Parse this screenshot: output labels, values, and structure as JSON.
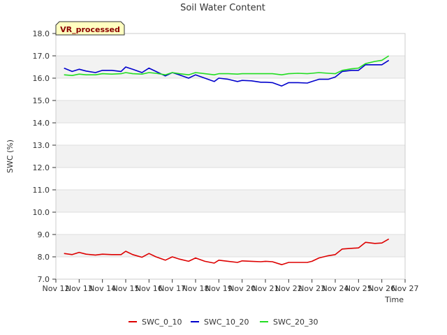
{
  "chart_data": {
    "type": "line",
    "title": "Soil Water Content",
    "xlabel": "Time",
    "ylabel": "SWC (%)",
    "badge": "VR_processed",
    "xlim": [
      12,
      27
    ],
    "ylim": [
      7.0,
      18.0
    ],
    "x_ticks": [
      12,
      13,
      14,
      15,
      16,
      17,
      18,
      19,
      20,
      21,
      22,
      23,
      24,
      25,
      26,
      27
    ],
    "x_tick_labels": [
      "Nov 12",
      "Nov 13",
      "Nov 14",
      "Nov 15",
      "Nov 16",
      "Nov 17",
      "Nov 18",
      "Nov 19",
      "Nov 20",
      "Nov 21",
      "Nov 22",
      "Nov 23",
      "Nov 24",
      "Nov 25",
      "Nov 26",
      "Nov 27"
    ],
    "y_ticks": [
      7.0,
      8.0,
      9.0,
      10.0,
      11.0,
      12.0,
      13.0,
      14.0,
      15.0,
      16.0,
      17.0,
      18.0
    ],
    "y_tick_labels": [
      "7.0",
      "8.0",
      "9.0",
      "10.0",
      "11.0",
      "12.0",
      "13.0",
      "14.0",
      "15.0",
      "16.0",
      "17.0",
      "18.0"
    ],
    "series": [
      {
        "name": "SWC_0_10",
        "color": "#dd0000",
        "x": [
          12.35,
          12.7,
          13.0,
          13.3,
          13.7,
          14.0,
          14.4,
          14.8,
          15.0,
          15.3,
          15.7,
          16.0,
          16.3,
          16.7,
          17.0,
          17.3,
          17.7,
          18.0,
          18.4,
          18.8,
          19.0,
          19.4,
          19.8,
          20.0,
          20.4,
          20.8,
          21.0,
          21.3,
          21.7,
          22.0,
          22.4,
          22.8,
          23.0,
          23.3,
          23.7,
          24.0,
          24.3,
          24.7,
          25.0,
          25.3,
          25.7,
          26.0,
          26.3
        ],
        "values": [
          8.15,
          8.1,
          8.2,
          8.12,
          8.08,
          8.12,
          8.1,
          8.1,
          8.25,
          8.1,
          7.98,
          8.15,
          8.0,
          7.85,
          8.0,
          7.9,
          7.8,
          7.95,
          7.8,
          7.72,
          7.85,
          7.8,
          7.75,
          7.82,
          7.8,
          7.78,
          7.8,
          7.78,
          7.65,
          7.75,
          7.75,
          7.75,
          7.8,
          7.95,
          8.05,
          8.1,
          8.35,
          8.38,
          8.4,
          8.65,
          8.6,
          8.62,
          8.8
        ]
      },
      {
        "name": "SWC_10_20",
        "color": "#0000cc",
        "x": [
          12.35,
          12.7,
          13.0,
          13.3,
          13.7,
          14.0,
          14.4,
          14.8,
          15.0,
          15.3,
          15.7,
          16.0,
          16.3,
          16.7,
          17.0,
          17.3,
          17.7,
          18.0,
          18.4,
          18.8,
          19.0,
          19.4,
          19.8,
          20.0,
          20.4,
          20.8,
          21.0,
          21.3,
          21.7,
          22.0,
          22.4,
          22.8,
          23.0,
          23.3,
          23.7,
          24.0,
          24.3,
          24.7,
          25.0,
          25.3,
          25.7,
          26.0,
          26.3
        ],
        "values": [
          16.45,
          16.3,
          16.4,
          16.32,
          16.25,
          16.35,
          16.35,
          16.3,
          16.5,
          16.4,
          16.25,
          16.45,
          16.3,
          16.1,
          16.25,
          16.15,
          16.0,
          16.15,
          16.0,
          15.85,
          16.0,
          15.95,
          15.85,
          15.9,
          15.88,
          15.82,
          15.82,
          15.8,
          15.65,
          15.8,
          15.8,
          15.78,
          15.85,
          15.95,
          15.95,
          16.05,
          16.3,
          16.35,
          16.35,
          16.6,
          16.6,
          16.6,
          16.8
        ]
      },
      {
        "name": "SWC_20_30",
        "color": "#22dd22",
        "x": [
          12.35,
          12.7,
          13.0,
          13.3,
          13.7,
          14.0,
          14.4,
          14.8,
          15.0,
          15.3,
          15.7,
          16.0,
          16.3,
          16.7,
          17.0,
          17.3,
          17.7,
          18.0,
          18.4,
          18.8,
          19.0,
          19.4,
          19.8,
          20.0,
          20.4,
          20.8,
          21.0,
          21.3,
          21.7,
          22.0,
          22.4,
          22.8,
          23.0,
          23.3,
          23.7,
          24.0,
          24.3,
          24.7,
          25.0,
          25.3,
          25.7,
          26.0,
          26.3
        ],
        "values": [
          16.15,
          16.12,
          16.18,
          16.15,
          16.15,
          16.2,
          16.18,
          16.2,
          16.25,
          16.2,
          16.18,
          16.25,
          16.22,
          16.15,
          16.25,
          16.2,
          16.15,
          16.25,
          16.2,
          16.15,
          16.2,
          16.2,
          16.18,
          16.2,
          16.2,
          16.2,
          16.2,
          16.2,
          16.15,
          16.2,
          16.22,
          16.2,
          16.22,
          16.25,
          16.22,
          16.2,
          16.35,
          16.42,
          16.45,
          16.65,
          16.75,
          16.8,
          17.0
        ]
      }
    ],
    "legend_position": "bottom-center"
  }
}
